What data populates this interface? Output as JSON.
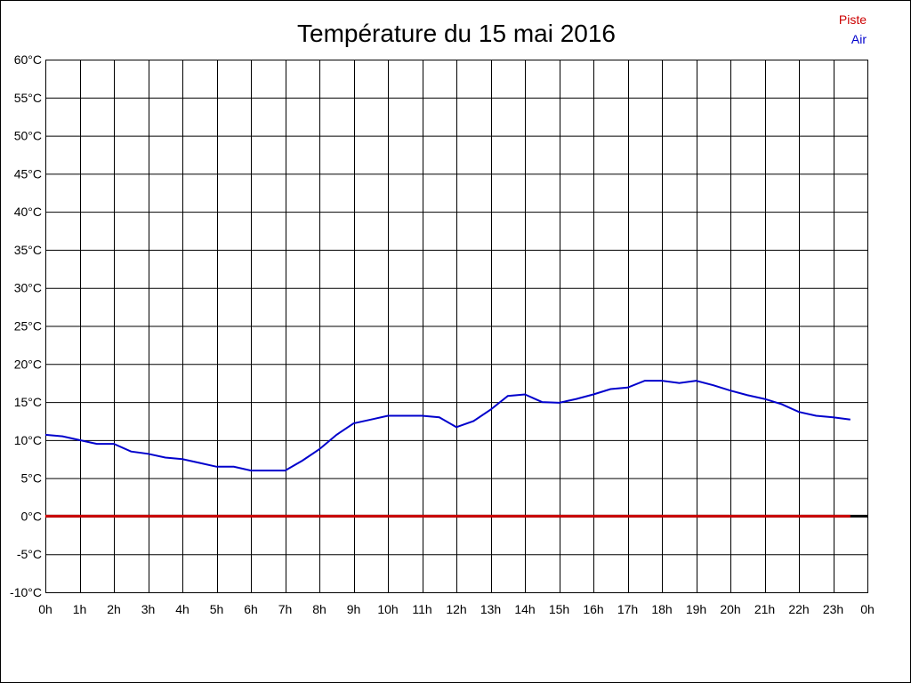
{
  "chart_data": {
    "type": "line",
    "title": "Température du 15 mai 2016",
    "xlabel": "",
    "ylabel": "",
    "ylim": [
      -10,
      60
    ],
    "xlim": [
      0,
      24
    ],
    "grid": true,
    "legend_placement": "top-right",
    "y_ticks": [
      -10,
      -5,
      0,
      5,
      10,
      15,
      20,
      25,
      30,
      35,
      40,
      45,
      50,
      55,
      60
    ],
    "y_tick_labels": [
      "-10°C",
      "-5°C",
      "0°C",
      "5°C",
      "10°C",
      "15°C",
      "20°C",
      "25°C",
      "30°C",
      "35°C",
      "40°C",
      "45°C",
      "50°C",
      "55°C",
      "60°C"
    ],
    "x_ticks": [
      0,
      1,
      2,
      3,
      4,
      5,
      6,
      7,
      8,
      9,
      10,
      11,
      12,
      13,
      14,
      15,
      16,
      17,
      18,
      19,
      20,
      21,
      22,
      23,
      24
    ],
    "x_tick_labels": [
      "0h",
      "1h",
      "2h",
      "3h",
      "4h",
      "5h",
      "6h",
      "7h",
      "8h",
      "9h",
      "10h",
      "11h",
      "12h",
      "13h",
      "14h",
      "15h",
      "16h",
      "17h",
      "18h",
      "19h",
      "20h",
      "21h",
      "22h",
      "23h",
      "0h"
    ],
    "series": [
      {
        "name": "Piste",
        "color": "#cc0000",
        "x": [
          0,
          23.5
        ],
        "values": [
          0,
          0
        ]
      },
      {
        "name": "Air",
        "color": "#0000cc",
        "x": [
          0,
          0.5,
          1,
          1.5,
          2,
          2.5,
          3,
          3.5,
          4,
          4.5,
          5,
          5.5,
          6,
          6.5,
          7,
          7.5,
          8,
          8.5,
          9,
          9.5,
          10,
          10.5,
          11,
          11.5,
          12,
          12.5,
          13,
          13.5,
          14,
          14.5,
          15,
          15.5,
          16,
          16.5,
          17,
          17.5,
          18,
          18.5,
          19,
          19.5,
          20,
          20.5,
          21,
          21.5,
          22,
          22.5,
          23,
          23.5
        ],
        "values": [
          10.7,
          10.5,
          10.0,
          9.5,
          9.5,
          8.5,
          8.2,
          7.7,
          7.5,
          7.0,
          6.5,
          6.5,
          6.0,
          6.0,
          6.0,
          7.3,
          8.8,
          10.7,
          12.2,
          12.7,
          13.2,
          13.2,
          13.2,
          13.0,
          11.7,
          12.5,
          14.0,
          15.8,
          16.0,
          15.0,
          14.9,
          15.4,
          16.0,
          16.7,
          16.9,
          17.8,
          17.8,
          17.5,
          17.8,
          17.2,
          16.5,
          15.9,
          15.4,
          14.7,
          13.7,
          13.2,
          13.0,
          12.7
        ]
      }
    ],
    "baseline_color": "#000000"
  }
}
